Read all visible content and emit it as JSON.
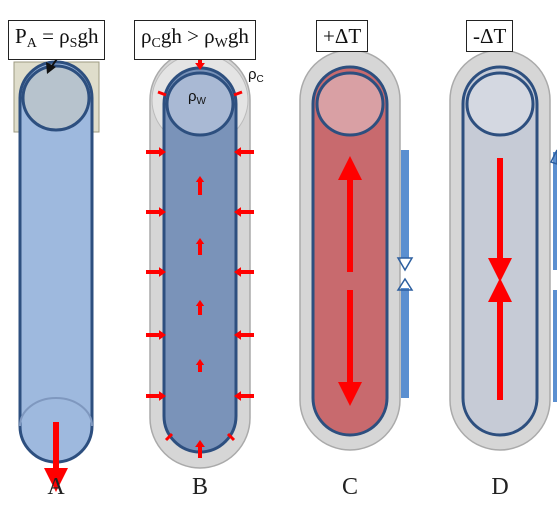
{
  "panels": [
    {
      "id": "A",
      "equation": {
        "p1": "P",
        "s1": "A",
        "p2": " = ρ",
        "s2": "S",
        "p3": "gh"
      },
      "letter": "A"
    },
    {
      "id": "B",
      "equation": {
        "p1": "ρ",
        "s1": "C",
        "p2": "gh > ρ",
        "s2": "W",
        "p3": "gh"
      },
      "letter": "B"
    },
    {
      "id": "C",
      "equation_text": "+ΔT",
      "letter": "C"
    },
    {
      "id": "D",
      "equation_text": "-ΔT",
      "letter": "D"
    }
  ],
  "annotations": {
    "rho_w": {
      "base": "ρ",
      "sub": "W"
    },
    "rho_c": {
      "base": "ρ",
      "sub": "C"
    }
  },
  "colors": {
    "tube_blue": "#9eb9de",
    "tube_blue_dark": "#7a93b9",
    "tube_red": "#c86a6e",
    "tube_grey": "#c6cbd6",
    "outline": "#2d4f7f",
    "casing": "#d6d6d6",
    "arrow": "#ff0000",
    "side_arrow": "#5b8fd0"
  }
}
